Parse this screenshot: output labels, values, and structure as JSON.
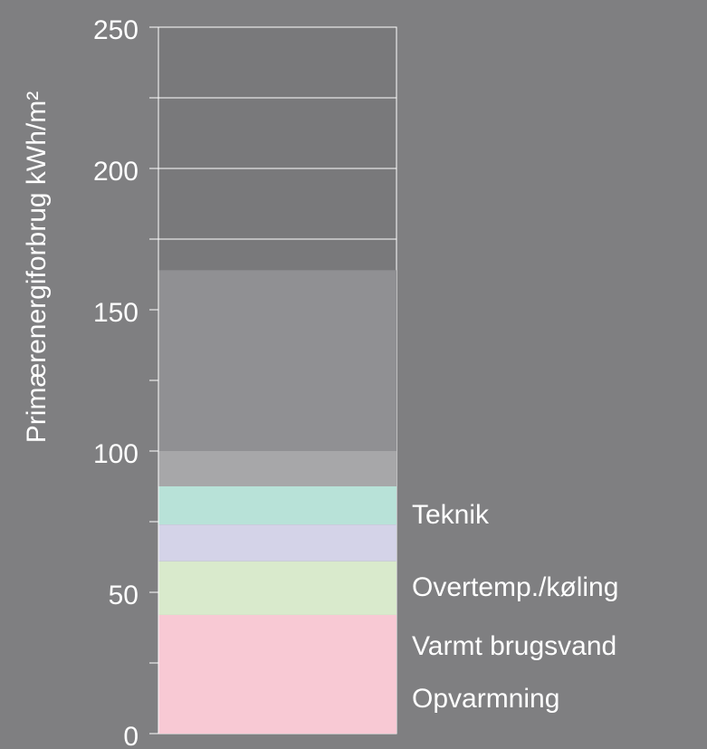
{
  "chart_data": {
    "type": "stacked_bar",
    "ylabel": "Primærenergiforbrug kWh/m²",
    "ylim": [
      0,
      250
    ],
    "yticks": [
      0,
      50,
      100,
      150,
      200,
      250
    ],
    "yticks_minor": [
      25,
      75,
      125,
      175,
      225
    ],
    "grid": true,
    "series": [
      {
        "name": "Opvarmning",
        "color": "#f8c9d4",
        "values": [
          42
        ]
      },
      {
        "name": "Varmt brugsvand",
        "color": "#d9eacc",
        "values": [
          19
        ]
      },
      {
        "name": "Overtemp./køling",
        "color": "#d4d3e8",
        "values": [
          13
        ]
      },
      {
        "name": "Teknik",
        "color": "#b8e2d8",
        "values": [
          13.5
        ]
      },
      {
        "color": "#a7a7a9",
        "values": [
          12.5
        ]
      },
      {
        "color": "#909093",
        "values": [
          64
        ]
      }
    ]
  }
}
